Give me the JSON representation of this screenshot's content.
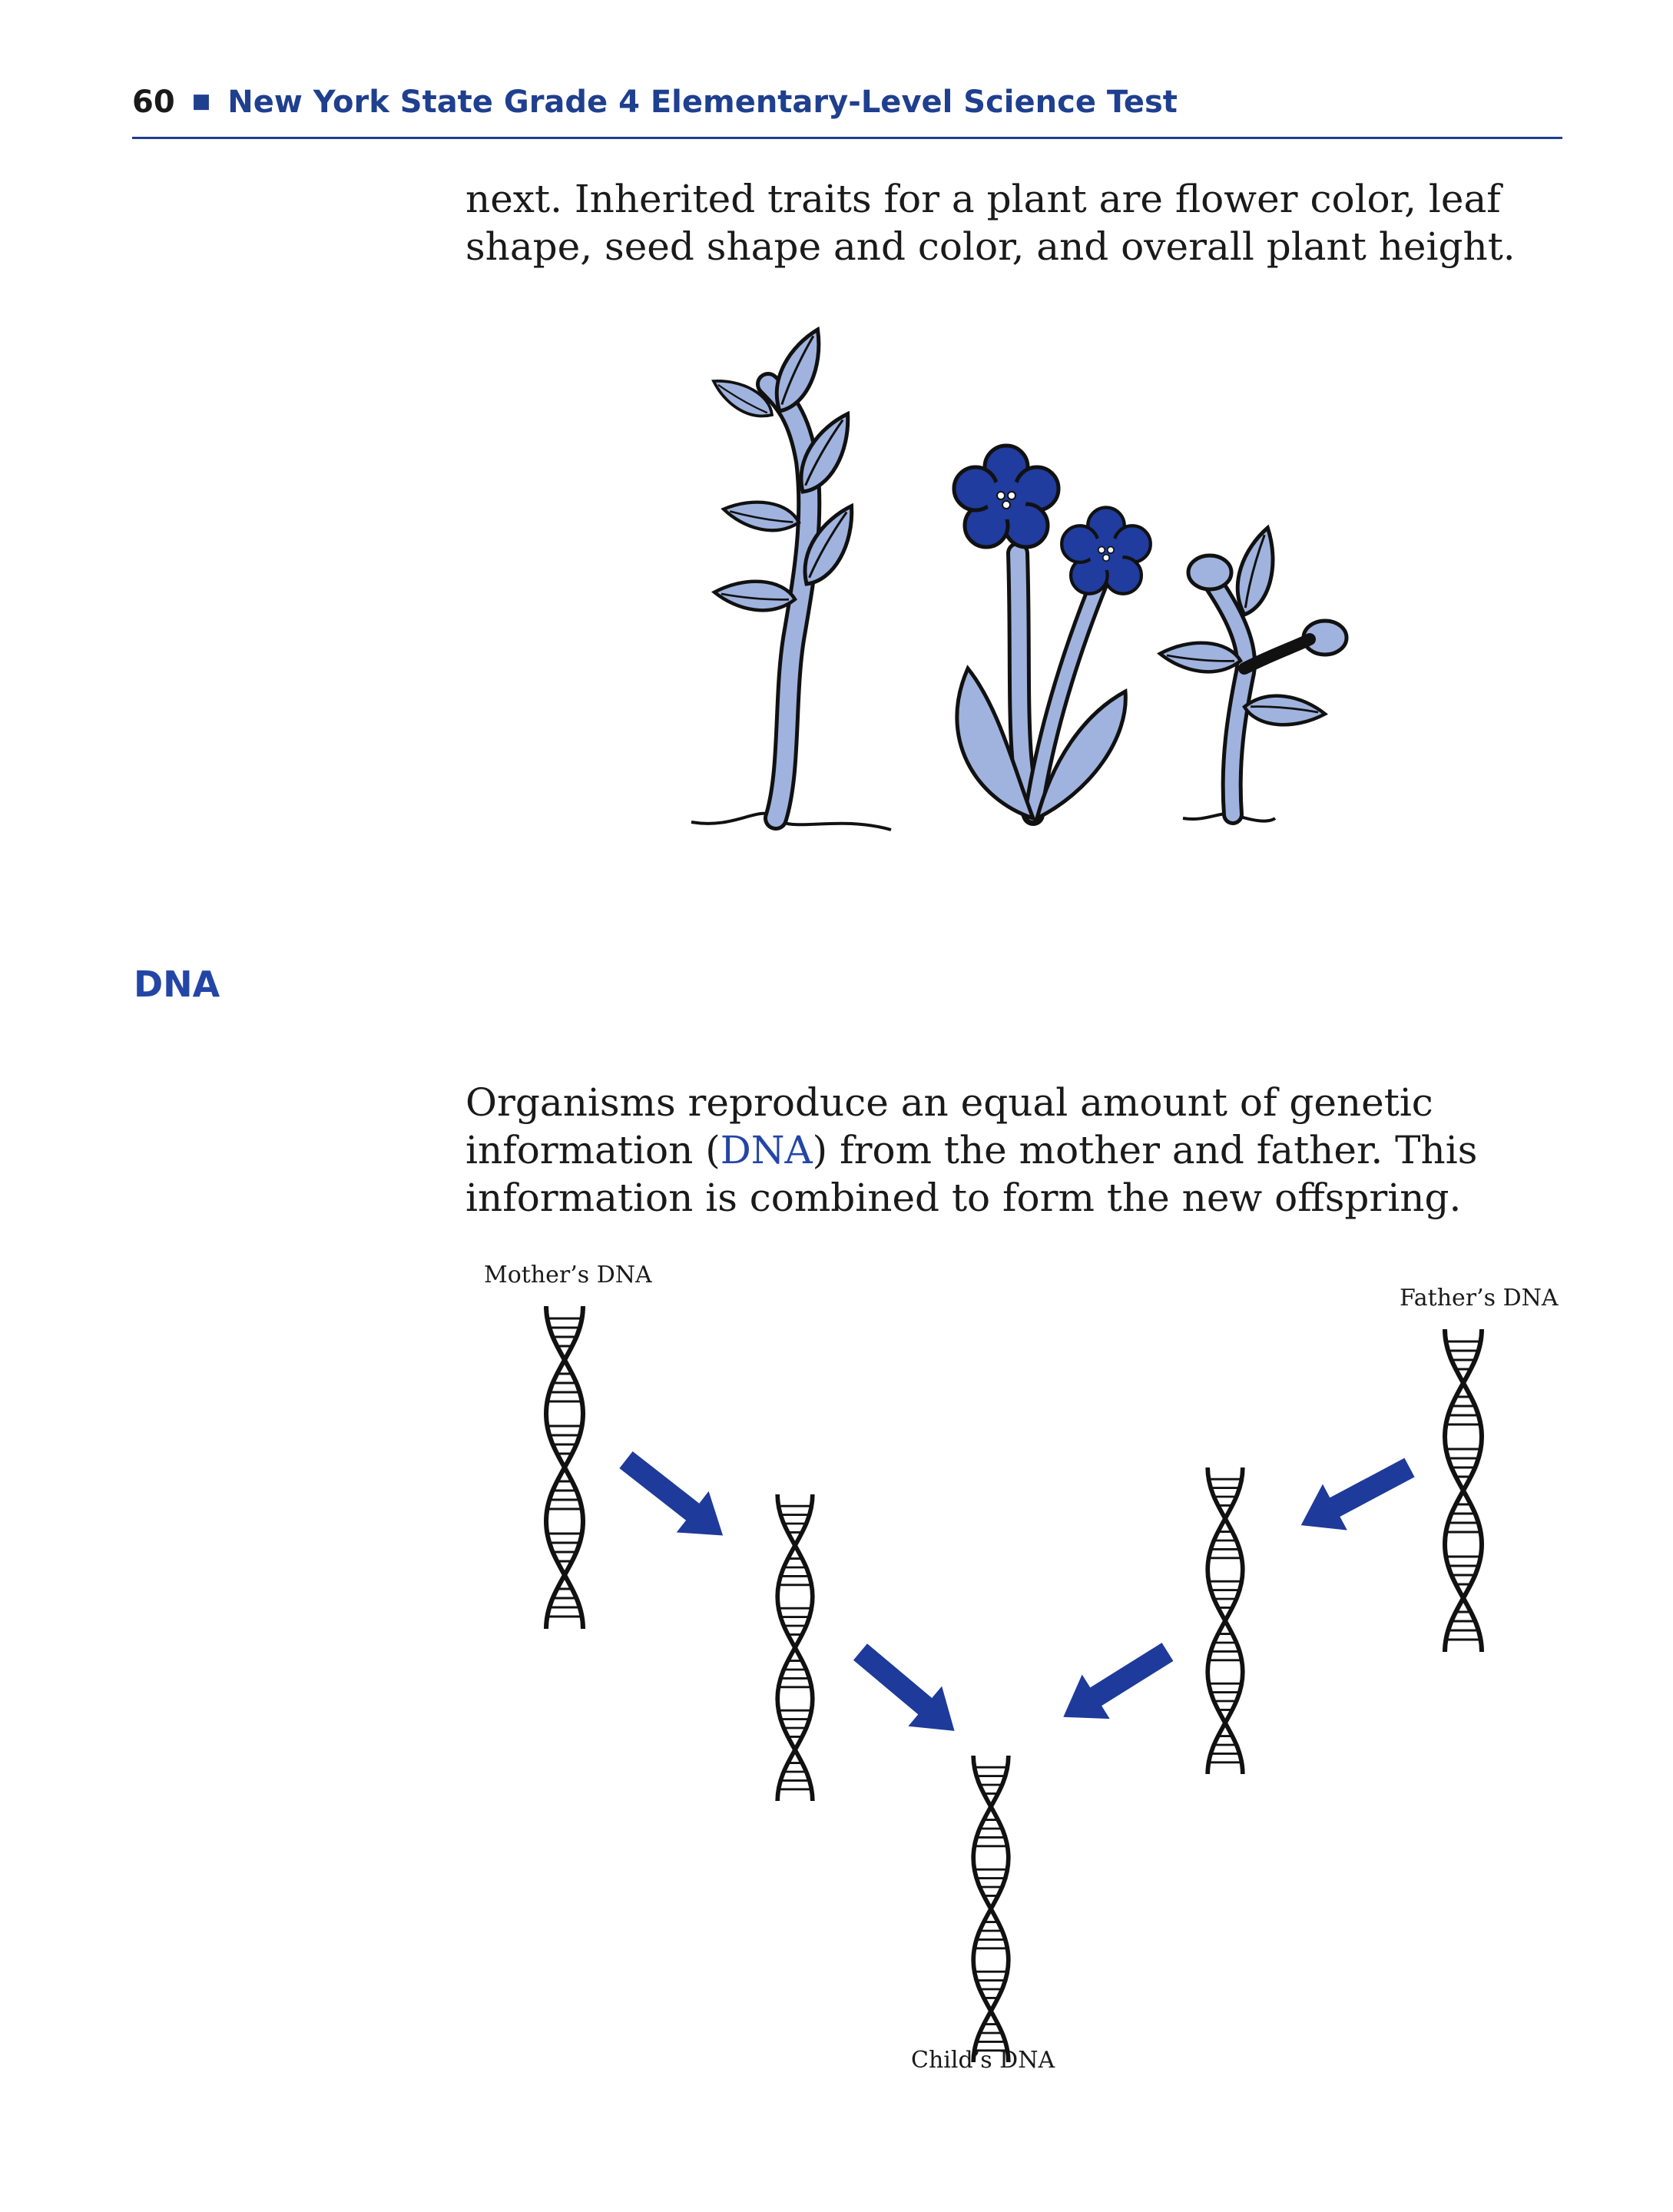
{
  "header": {
    "page_number": "60",
    "bullet": "■",
    "book_title": "New York State Grade 4 Elementary-Level Science Test"
  },
  "paragraph1": {
    "line1": "next. Inherited traits for a plant are flower color, leaf",
    "line2": "shape, seed shape and color, and overall plant height."
  },
  "sidebar": {
    "heading": "DNA"
  },
  "paragraph2": {
    "line1": "Organisms reproduce an equal amount of genetic",
    "line2_before": "information (",
    "line2_term": "DNA",
    "line2_after": ") from the mother and father. This",
    "line3": "information is combined to form the new offspring."
  },
  "diagram": {
    "mother_label": "Mother’s DNA",
    "father_label": "Father’s DNA",
    "child_label": "Child’s DNA"
  },
  "colors": {
    "accent_blue": "#1f3f8f",
    "term_blue": "#2346a6",
    "plant_light_blue": "#9fb3de",
    "flower_blue": "#1f3c9e",
    "arrow_blue": "#1e3a9a",
    "ink": "#1a1a1a"
  },
  "icons": [
    "leafy-stem-plant-icon",
    "flower-plant-icon",
    "bud-plant-icon",
    "dna-helix-icon",
    "arrow-icon"
  ]
}
